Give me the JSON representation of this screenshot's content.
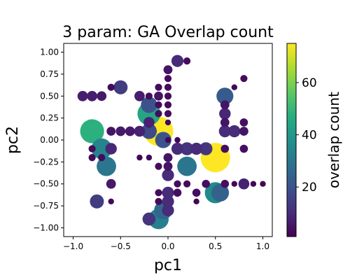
{
  "chart_data": {
    "type": "scatter",
    "title": "3 param: GA Overlap count",
    "xlabel": "pc1",
    "ylabel": "pc2",
    "xlim": [
      -1.1,
      1.1
    ],
    "ylim": [
      -1.1,
      1.1
    ],
    "xticks": [
      -1.0,
      -0.5,
      0.0,
      0.5,
      1.0
    ],
    "xtick_labels": [
      "−1.0",
      "−0.5",
      "0.0",
      "0.5",
      "1.0"
    ],
    "yticks": [
      1.0,
      0.75,
      0.5,
      0.25,
      0.0,
      -0.25,
      -0.5,
      -0.75,
      -1.0
    ],
    "ytick_labels": [
      "1.00",
      "0.75",
      "0.50",
      "0.25",
      "0.00",
      "−0.25",
      "−0.50",
      "−0.75",
      "−1.00"
    ],
    "colorbar": {
      "label": "overlap count",
      "colormap": "viridis",
      "range": [
        1,
        75
      ],
      "ticks": [
        20,
        40,
        60
      ],
      "tick_labels": [
        "20",
        "40",
        "60"
      ]
    },
    "size_encoding": "overlap count",
    "grid": false,
    "points": [
      {
        "x": -0.8,
        "y": 0.1,
        "count": 48
      },
      {
        "x": -0.7,
        "y": -0.1,
        "count": 34
      },
      {
        "x": -0.65,
        "y": -0.3,
        "count": 30
      },
      {
        "x": -0.2,
        "y": 0.3,
        "count": 44
      },
      {
        "x": -0.2,
        "y": 0.1,
        "count": 18
      },
      {
        "x": -0.2,
        "y": 0.4,
        "count": 20
      },
      {
        "x": -0.1,
        "y": 0.1,
        "count": 75
      },
      {
        "x": -0.05,
        "y": 0.0,
        "count": 20
      },
      {
        "x": -0.1,
        "y": -0.9,
        "count": 33
      },
      {
        "x": -0.05,
        "y": -0.8,
        "count": 26
      },
      {
        "x": 0.2,
        "y": -0.3,
        "count": 30
      },
      {
        "x": 0.5,
        "y": -0.2,
        "count": 75
      },
      {
        "x": 0.5,
        "y": -0.6,
        "count": 36
      },
      {
        "x": 0.55,
        "y": -0.6,
        "count": 24
      },
      {
        "x": 0.6,
        "y": 0.5,
        "count": 22
      },
      {
        "x": -0.75,
        "y": -0.7,
        "count": 14
      },
      {
        "x": -0.5,
        "y": 0.6,
        "count": 14
      },
      {
        "x": -0.2,
        "y": -0.9,
        "count": 12
      },
      {
        "x": 0.4,
        "y": -0.1,
        "count": 12
      },
      {
        "x": 0.2,
        "y": -0.1,
        "count": 12
      },
      {
        "x": 0.1,
        "y": -0.1,
        "count": 10
      },
      {
        "x": 0.3,
        "y": -0.1,
        "count": 10
      },
      {
        "x": 0.0,
        "y": -0.4,
        "count": 10
      },
      {
        "x": 0.0,
        "y": -0.6,
        "count": 10
      },
      {
        "x": 0.0,
        "y": -0.7,
        "count": 10
      },
      {
        "x": 0.0,
        "y": -0.8,
        "count": 10
      },
      {
        "x": 0.1,
        "y": 0.9,
        "count": 10
      },
      {
        "x": 0.7,
        "y": 0.1,
        "count": 10
      },
      {
        "x": 0.6,
        "y": 0.1,
        "count": 10
      },
      {
        "x": 0.6,
        "y": 0.3,
        "count": 9
      },
      {
        "x": -0.6,
        "y": -0.1,
        "count": 9
      },
      {
        "x": -0.2,
        "y": 0.2,
        "count": 8
      },
      {
        "x": -0.3,
        "y": 0.1,
        "count": 8
      },
      {
        "x": 0.8,
        "y": -0.5,
        "count": 8
      },
      {
        "x": -0.3,
        "y": 0.5,
        "count": 7
      },
      {
        "x": -0.9,
        "y": 0.5,
        "count": 7
      },
      {
        "x": -0.8,
        "y": 0.5,
        "count": 7
      },
      {
        "x": -0.7,
        "y": 0.5,
        "count": 6
      },
      {
        "x": -0.6,
        "y": -0.5,
        "count": 6
      },
      {
        "x": -0.4,
        "y": 0.1,
        "count": 6
      },
      {
        "x": -0.5,
        "y": 0.1,
        "count": 6
      },
      {
        "x": -0.6,
        "y": 0.1,
        "count": 5
      },
      {
        "x": -0.1,
        "y": 0.5,
        "count": 5
      },
      {
        "x": 0.0,
        "y": 0.8,
        "count": 5
      },
      {
        "x": 0.0,
        "y": -0.2,
        "count": 5
      },
      {
        "x": 0.0,
        "y": -0.3,
        "count": 5
      },
      {
        "x": 0.6,
        "y": 0.4,
        "count": 5
      },
      {
        "x": 0.6,
        "y": 0.2,
        "count": 5
      },
      {
        "x": 0.8,
        "y": 0.1,
        "count": 5
      },
      {
        "x": 0.8,
        "y": 0.2,
        "count": 4
      },
      {
        "x": 0.8,
        "y": -0.1,
        "count": 4
      },
      {
        "x": 0.6,
        "y": -0.1,
        "count": 4
      },
      {
        "x": 0.6,
        "y": -0.5,
        "count": 4
      },
      {
        "x": 0.4,
        "y": -0.5,
        "count": 4
      },
      {
        "x": 0.3,
        "y": -0.6,
        "count": 4
      },
      {
        "x": 0.1,
        "y": -0.6,
        "count": 4
      },
      {
        "x": 0.2,
        "y": -0.5,
        "count": 3
      },
      {
        "x": 0.1,
        "y": -0.5,
        "count": 3
      },
      {
        "x": 0.0,
        "y": 0.7,
        "count": 3
      },
      {
        "x": 0.0,
        "y": 0.6,
        "count": 3
      },
      {
        "x": 0.0,
        "y": 0.5,
        "count": 3
      },
      {
        "x": 0.0,
        "y": 0.4,
        "count": 3
      },
      {
        "x": 0.0,
        "y": 0.3,
        "count": 3
      },
      {
        "x": 0.2,
        "y": 0.9,
        "count": 3
      },
      {
        "x": 0.8,
        "y": 0.7,
        "count": 3
      },
      {
        "x": -0.1,
        "y": 0.6,
        "count": 3
      },
      {
        "x": -0.2,
        "y": 0.5,
        "count": 3
      },
      {
        "x": -0.1,
        "y": 0.4,
        "count": 3
      },
      {
        "x": -0.1,
        "y": 0.3,
        "count": 3
      },
      {
        "x": -0.1,
        "y": -0.3,
        "count": 3
      },
      {
        "x": -0.1,
        "y": -0.6,
        "count": 3
      },
      {
        "x": -0.1,
        "y": -0.7,
        "count": 3
      },
      {
        "x": -0.8,
        "y": -0.1,
        "count": 3
      },
      {
        "x": -0.8,
        "y": -0.2,
        "count": 3
      },
      {
        "x": -0.7,
        "y": -0.2,
        "count": 3
      },
      {
        "x": -0.6,
        "y": 0.6,
        "count": 3
      },
      {
        "x": -0.6,
        "y": -0.7,
        "count": 2
      },
      {
        "x": -0.3,
        "y": -0.2,
        "count": 2
      },
      {
        "x": -0.2,
        "y": -0.2,
        "count": 2
      },
      {
        "x": 0.1,
        "y": 0.0,
        "count": 2
      },
      {
        "x": 0.3,
        "y": -0.7,
        "count": 2
      },
      {
        "x": 0.9,
        "y": -0.5,
        "count": 2
      },
      {
        "x": 1.0,
        "y": -0.5,
        "count": 2
      },
      {
        "x": 0.7,
        "y": -0.5,
        "count": 2
      },
      {
        "x": 0.7,
        "y": 0.6,
        "count": 2
      },
      {
        "x": 0.0,
        "y": 0.2,
        "count": 2
      },
      {
        "x": 0.0,
        "y": 0.0,
        "count": 2
      }
    ]
  }
}
